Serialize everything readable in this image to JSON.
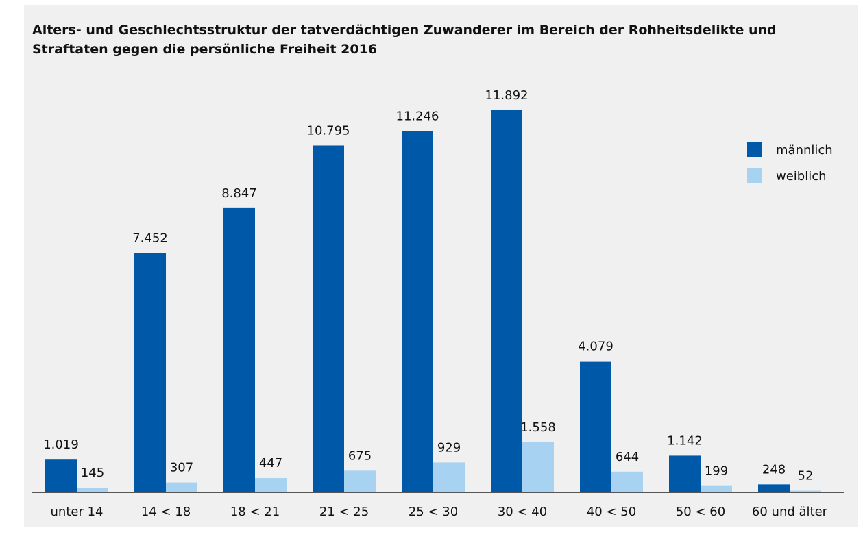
{
  "chart_data": {
    "type": "bar",
    "title": "Alters- und Geschlechtsstruktur der tatverdächtigen Zuwanderer im Bereich der Rohheitsdelikte und Straftaten gegen die persönliche Freiheit 2016",
    "categories": [
      "unter 14",
      "14 < 18",
      "18 < 21",
      "21 < 25",
      "25 < 30",
      "30 < 40",
      "40 < 50",
      "50 < 60",
      "60 und älter"
    ],
    "series": [
      {
        "name": "männlich",
        "color": "#0059a8",
        "values": [
          1019,
          7452,
          8847,
          10795,
          11246,
          11892,
          4079,
          1142,
          248
        ],
        "value_labels": [
          "1.019",
          "7.452",
          "8.847",
          "10.795",
          "11.246",
          "11.892",
          "4.079",
          "1.142",
          "248"
        ]
      },
      {
        "name": "weiblich",
        "color": "#a7d2f1",
        "values": [
          145,
          307,
          447,
          675,
          929,
          1558,
          644,
          199,
          52
        ],
        "value_labels": [
          "145",
          "307",
          "447",
          "675",
          "929",
          "1.558",
          "644",
          "199",
          "52"
        ]
      }
    ],
    "legend": "top-right"
  }
}
